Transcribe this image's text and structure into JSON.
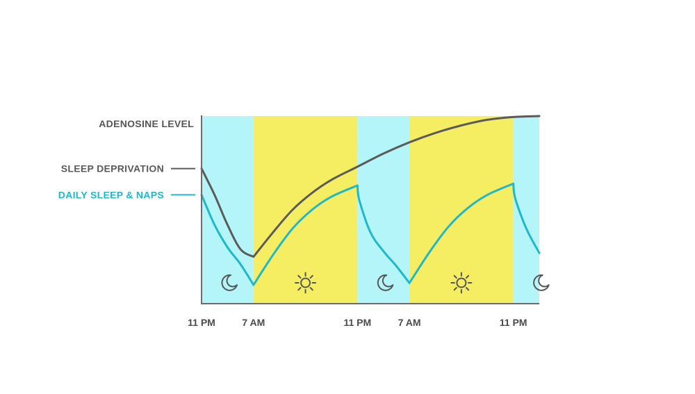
{
  "chart_data": {
    "type": "line",
    "y_axis_label": "ADENOSINE LEVEL",
    "x_tick_labels": [
      "11 PM",
      "7 AM",
      "11 PM",
      "7 AM",
      "11 PM"
    ],
    "x_ticks_hours": [
      0,
      8,
      24,
      32,
      48
    ],
    "x_range_hours": [
      0,
      52
    ],
    "periods": [
      {
        "kind": "night",
        "icon": "moon-icon",
        "from_hour": 0,
        "to_hour": 8
      },
      {
        "kind": "day",
        "icon": "sun-icon",
        "from_hour": 8,
        "to_hour": 24
      },
      {
        "kind": "night",
        "icon": "moon-icon",
        "from_hour": 24,
        "to_hour": 32
      },
      {
        "kind": "day",
        "icon": "sun-icon",
        "from_hour": 32,
        "to_hour": 48
      },
      {
        "kind": "night",
        "icon": "moon-icon",
        "from_hour": 48,
        "to_hour": 52
      }
    ],
    "series": [
      {
        "name": "SLEEP DEPRIVATION",
        "color": "#5a5a5a",
        "points": [
          [
            0,
            0.72
          ],
          [
            2,
            0.58
          ],
          [
            4,
            0.42
          ],
          [
            6,
            0.29
          ],
          [
            8,
            0.25
          ],
          [
            11,
            0.38
          ],
          [
            14,
            0.5
          ],
          [
            17,
            0.59
          ],
          [
            20,
            0.66
          ],
          [
            24,
            0.73
          ],
          [
            28,
            0.8
          ],
          [
            32,
            0.86
          ],
          [
            36,
            0.91
          ],
          [
            40,
            0.95
          ],
          [
            44,
            0.98
          ],
          [
            48,
            0.995
          ],
          [
            52,
            1.0
          ]
        ]
      },
      {
        "name": "DAILY SLEEP & NAPS",
        "color": "#1fb8c9",
        "points": [
          [
            0,
            0.58
          ],
          [
            2,
            0.42
          ],
          [
            4,
            0.3
          ],
          [
            6,
            0.21
          ],
          [
            8,
            0.1
          ],
          [
            11,
            0.26
          ],
          [
            14,
            0.4
          ],
          [
            17,
            0.5
          ],
          [
            20,
            0.57
          ],
          [
            24,
            0.63
          ],
          [
            24.3,
            0.55
          ],
          [
            26,
            0.38
          ],
          [
            28,
            0.28
          ],
          [
            30,
            0.2
          ],
          [
            32,
            0.11
          ],
          [
            35,
            0.27
          ],
          [
            38,
            0.41
          ],
          [
            41,
            0.51
          ],
          [
            44,
            0.58
          ],
          [
            48,
            0.64
          ],
          [
            48.3,
            0.56
          ],
          [
            50,
            0.4
          ],
          [
            52,
            0.27
          ]
        ]
      }
    ],
    "colors": {
      "night": "#b4f5f9",
      "day": "#f6ee62",
      "axis": "#6b6b6b",
      "icon": "#555555"
    }
  }
}
